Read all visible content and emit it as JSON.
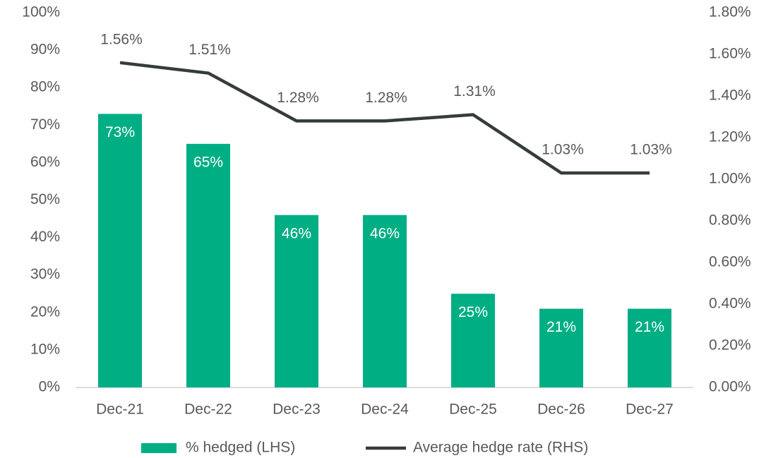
{
  "chart_data": {
    "type": "bar",
    "categories": [
      "Dec-21",
      "Dec-22",
      "Dec-23",
      "Dec-24",
      "Dec-25",
      "Dec-26",
      "Dec-27"
    ],
    "series": [
      {
        "name": "% hedged (LHS)",
        "type": "bar",
        "color": "#00ae84",
        "values": [
          73,
          65,
          46,
          46,
          25,
          21,
          21
        ],
        "value_labels": [
          "73%",
          "65%",
          "46%",
          "46%",
          "25%",
          "21%",
          "21%"
        ]
      },
      {
        "name": "Average hedge rate (RHS)",
        "type": "line",
        "axis": "y2",
        "color": "#363c3c",
        "values": [
          1.56,
          1.51,
          1.28,
          1.28,
          1.31,
          1.03,
          1.03
        ],
        "value_labels": [
          "1.56%",
          "1.51%",
          "1.28%",
          "1.28%",
          "1.31%",
          "1.03%",
          "1.03%"
        ]
      }
    ],
    "ylim": [
      0,
      100
    ],
    "yticks": [
      {
        "value": 0,
        "label": "0%"
      },
      {
        "value": 10,
        "label": "10%"
      },
      {
        "value": 20,
        "label": "20%"
      },
      {
        "value": 30,
        "label": "30%"
      },
      {
        "value": 40,
        "label": "40%"
      },
      {
        "value": 50,
        "label": "50%"
      },
      {
        "value": 60,
        "label": "60%"
      },
      {
        "value": 70,
        "label": "70%"
      },
      {
        "value": 80,
        "label": "80%"
      },
      {
        "value": 90,
        "label": "90%"
      },
      {
        "value": 100,
        "label": "100%"
      }
    ],
    "y2lim": [
      0,
      1.8
    ],
    "y2ticks": [
      {
        "value": 0,
        "label": "0.00%"
      },
      {
        "value": 0.2,
        "label": "0.20%"
      },
      {
        "value": 0.4,
        "label": "0.40%"
      },
      {
        "value": 0.6,
        "label": "0.60%"
      },
      {
        "value": 0.8,
        "label": "0.80%"
      },
      {
        "value": 1.0,
        "label": "1.00%"
      },
      {
        "value": 1.2,
        "label": "1.20%"
      },
      {
        "value": 1.4,
        "label": "1.40%"
      },
      {
        "value": 1.6,
        "label": "1.60%"
      },
      {
        "value": 1.8,
        "label": "1.80%"
      }
    ],
    "grid": false,
    "legend": "bottom"
  }
}
